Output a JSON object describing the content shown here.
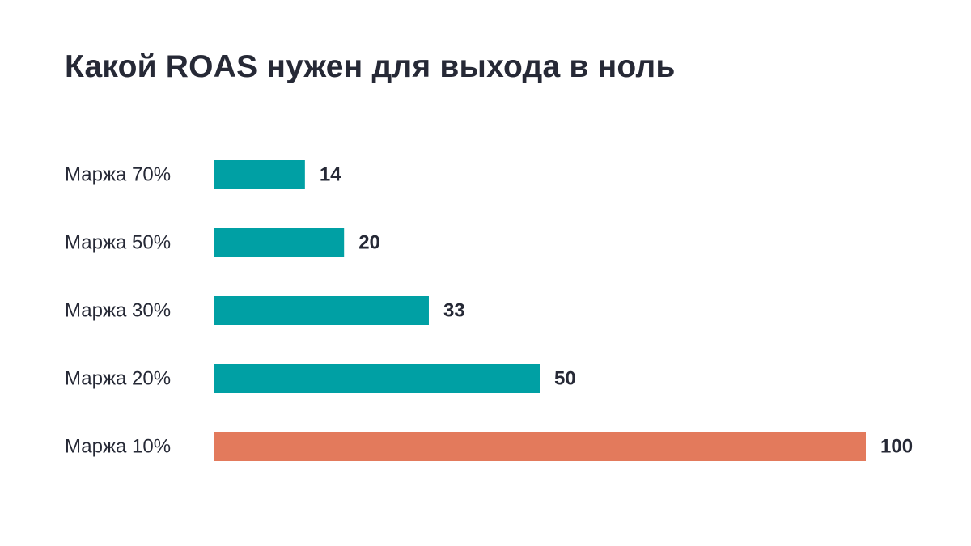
{
  "chart_data": {
    "type": "bar",
    "orientation": "horizontal",
    "title": "Какой ROAS нужен для выхода в ноль",
    "categories": [
      "Маржа 70%",
      "Маржа 50%",
      "Маржа 30%",
      "Маржа 20%",
      "Маржа 10%"
    ],
    "values": [
      14,
      20,
      33,
      50,
      100
    ],
    "value_labels": [
      "14",
      "20",
      "33",
      "50",
      "100"
    ],
    "xlim": [
      0,
      100
    ],
    "grid": false,
    "legend": "none",
    "colors": {
      "default": "#00A0A4",
      "highlight": "#E37A5C",
      "text": "#262936"
    },
    "highlight_index": 4
  }
}
